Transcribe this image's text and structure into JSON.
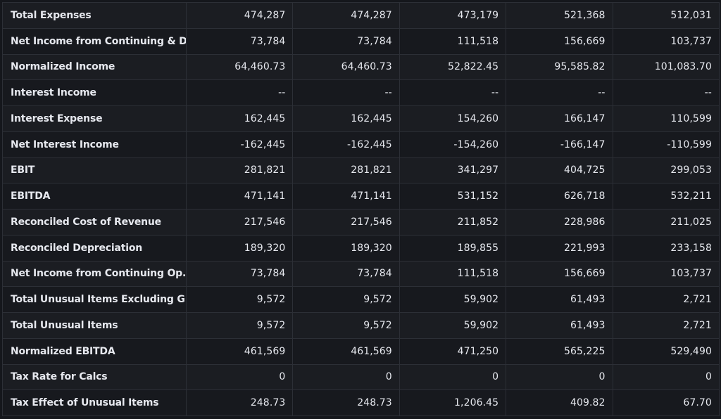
{
  "table": {
    "rows": [
      {
        "label": "Total Expenses",
        "values": [
          "474,287",
          "474,287",
          "473,179",
          "521,368",
          "512,031"
        ]
      },
      {
        "label": "Net Income from Continuing & D...",
        "values": [
          "73,784",
          "73,784",
          "111,518",
          "156,669",
          "103,737"
        ]
      },
      {
        "label": "Normalized Income",
        "values": [
          "64,460.73",
          "64,460.73",
          "52,822.45",
          "95,585.82",
          "101,083.70"
        ]
      },
      {
        "label": "Interest Income",
        "values": [
          "--",
          "--",
          "--",
          "--",
          "--"
        ]
      },
      {
        "label": "Interest Expense",
        "values": [
          "162,445",
          "162,445",
          "154,260",
          "166,147",
          "110,599"
        ]
      },
      {
        "label": "Net Interest Income",
        "values": [
          "-162,445",
          "-162,445",
          "-154,260",
          "-166,147",
          "-110,599"
        ]
      },
      {
        "label": "EBIT",
        "values": [
          "281,821",
          "281,821",
          "341,297",
          "404,725",
          "299,053"
        ]
      },
      {
        "label": "EBITDA",
        "values": [
          "471,141",
          "471,141",
          "531,152",
          "626,718",
          "532,211"
        ]
      },
      {
        "label": "Reconciled Cost of Revenue",
        "values": [
          "217,546",
          "217,546",
          "211,852",
          "228,986",
          "211,025"
        ]
      },
      {
        "label": "Reconciled Depreciation",
        "values": [
          "189,320",
          "189,320",
          "189,855",
          "221,993",
          "233,158"
        ]
      },
      {
        "label": "Net Income from Continuing Op...",
        "values": [
          "73,784",
          "73,784",
          "111,518",
          "156,669",
          "103,737"
        ]
      },
      {
        "label": "Total Unusual Items Excluding G...",
        "values": [
          "9,572",
          "9,572",
          "59,902",
          "61,493",
          "2,721"
        ]
      },
      {
        "label": "Total Unusual Items",
        "values": [
          "9,572",
          "9,572",
          "59,902",
          "61,493",
          "2,721"
        ]
      },
      {
        "label": "Normalized EBITDA",
        "values": [
          "461,569",
          "461,569",
          "471,250",
          "565,225",
          "529,490"
        ]
      },
      {
        "label": "Tax Rate for Calcs",
        "values": [
          "0",
          "0",
          "0",
          "0",
          "0"
        ]
      },
      {
        "label": "Tax Effect of Unusual Items",
        "values": [
          "248.73",
          "248.73",
          "1,206.45",
          "409.82",
          "67.70"
        ]
      }
    ]
  }
}
